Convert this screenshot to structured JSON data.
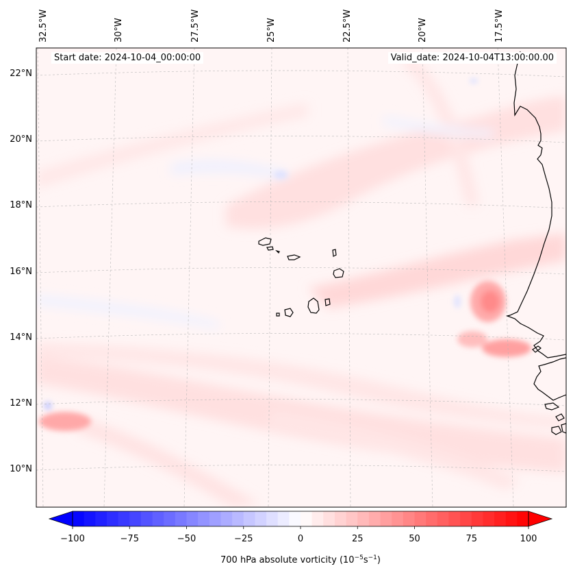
{
  "header": {
    "start_date": "Start date: 2024-10-04_00:00:00",
    "valid_date": "Valid_date: 2024-10-04T13:00:00.00"
  },
  "axes": {
    "lon_labels": [
      "32.5°W",
      "30°W",
      "27.5°W",
      "25°W",
      "22.5°W",
      "20°W",
      "17.5°W"
    ],
    "lat_labels": [
      "22°N",
      "20°N",
      "18°N",
      "16°N",
      "14°N",
      "12°N",
      "10°N"
    ]
  },
  "map": {
    "field": "700 hPa absolute vorticity",
    "region": "Cape Verde Islands and West African coast (Senegal, Mauritania, Gambia, Guinea-Bissau)",
    "features": [
      "Cape Verde Islands",
      "West African coastline",
      "vorticity maximum west of Senegal coast"
    ]
  },
  "colorbar": {
    "ticks": [
      "−100",
      "−75",
      "−50",
      "−25",
      "0",
      "25",
      "50",
      "75",
      "100"
    ],
    "label_text": "700 hPa absolute vorticity (10",
    "label_exp1": "−5",
    "label_unit": "s",
    "label_exp2": "−1",
    "label_close": ")",
    "min": -100,
    "max": 100,
    "levels": 41,
    "negative_color": "#0000ff",
    "positive_color": "#ff0000",
    "neutral_color": "#ffffff"
  }
}
